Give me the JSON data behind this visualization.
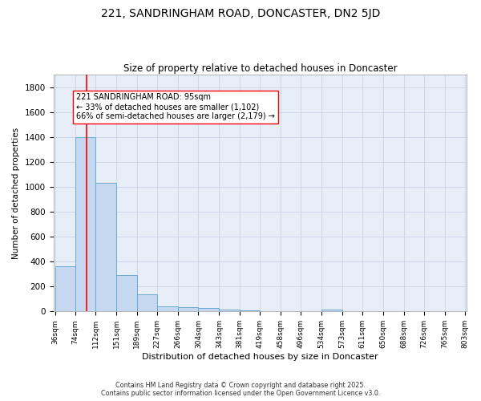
{
  "title_line1": "221, SANDRINGHAM ROAD, DONCASTER, DN2 5JD",
  "title_line2": "Size of property relative to detached houses in Doncaster",
  "xlabel": "Distribution of detached houses by size in Doncaster",
  "ylabel": "Number of detached properties",
  "bar_heights": [
    360,
    1400,
    1030,
    290,
    135,
    40,
    35,
    25,
    15,
    10,
    0,
    0,
    0,
    15,
    0,
    0,
    0,
    0,
    0,
    0
  ],
  "bin_edges": [
    36,
    74,
    112,
    151,
    189,
    227,
    266,
    304,
    343,
    381,
    419,
    458,
    496,
    534,
    573,
    611,
    650,
    688,
    726,
    765,
    803
  ],
  "bar_color": "#c5d8f0",
  "bar_edge_color": "#6aaad4",
  "grid_color": "#c8d4e8",
  "background_color": "#e8eef8",
  "red_line_x": 95,
  "annotation_line1": "221 SANDRINGHAM ROAD: 95sqm",
  "annotation_line2": "← 33% of detached houses are smaller (1,102)",
  "annotation_line3": "66% of semi-detached houses are larger (2,179) →",
  "ylim": [
    0,
    1900
  ],
  "yticks": [
    0,
    200,
    400,
    600,
    800,
    1000,
    1200,
    1400,
    1600,
    1800
  ],
  "footer_line1": "Contains HM Land Registry data © Crown copyright and database right 2025.",
  "footer_line2": "Contains public sector information licensed under the Open Government Licence v3.0."
}
